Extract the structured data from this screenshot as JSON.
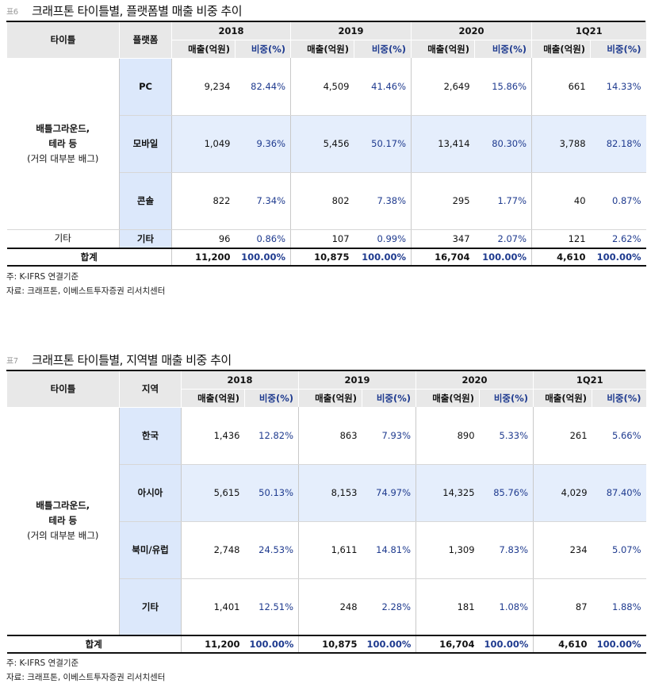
{
  "tables": [
    {
      "tag": "표6",
      "title": "크래프톤 타이틀별, 플랫폼별 매출 비중 추이",
      "col_title": "타이틀",
      "col_second": "플랫폼",
      "years": [
        "2018",
        "2019",
        "2020",
        "1Q21"
      ],
      "sub_sales": "매출(억원)",
      "sub_ratio": "비중(%)",
      "group_name_1": "배틀그라운드,",
      "group_name_2": "테라 등",
      "group_note": "(거의 대부분 배그)",
      "rows": [
        {
          "label": "PC",
          "values": [
            "9,234",
            "82.44%",
            "4,509",
            "41.46%",
            "2,649",
            "15.86%",
            "661",
            "14.33%"
          ]
        },
        {
          "label": "모바일",
          "values": [
            "1,049",
            "9.36%",
            "5,456",
            "50.17%",
            "13,414",
            "80.30%",
            "3,788",
            "82.18%"
          ]
        },
        {
          "label": "콘솔",
          "values": [
            "822",
            "7.34%",
            "802",
            "7.38%",
            "295",
            "1.77%",
            "40",
            "0.87%"
          ]
        }
      ],
      "etc_row": {
        "group": "기타",
        "label": "기타",
        "values": [
          "96",
          "0.86%",
          "107",
          "0.99%",
          "347",
          "2.07%",
          "121",
          "2.62%"
        ]
      },
      "total_row": {
        "label": "합계",
        "values": [
          "11,200",
          "100.00%",
          "10,875",
          "100.00%",
          "16,704",
          "100.00%",
          "4,610",
          "100.00%"
        ]
      },
      "note": "주: K-IFRS 연결기준",
      "source": "자료: 크래프톤, 이베스트투자증권 리서치센터"
    },
    {
      "tag": "표7",
      "title": "크래프톤 타이틀별, 지역별 매출 비중 추이",
      "col_title": "타이틀",
      "col_second": "지역",
      "years": [
        "2018",
        "2019",
        "2020",
        "1Q21"
      ],
      "sub_sales": "매출(억원)",
      "sub_ratio": "비중(%)",
      "group_name_1": "배틀그라운드,",
      "group_name_2": "테라 등",
      "group_note": "(거의 대부분 배그)",
      "rows": [
        {
          "label": "한국",
          "values": [
            "1,436",
            "12.82%",
            "863",
            "7.93%",
            "890",
            "5.33%",
            "261",
            "5.66%"
          ]
        },
        {
          "label": "아시아",
          "values": [
            "5,615",
            "50.13%",
            "8,153",
            "74.97%",
            "14,325",
            "85.76%",
            "4,029",
            "87.40%"
          ]
        },
        {
          "label": "북미/유럽",
          "values": [
            "2,748",
            "24.53%",
            "1,611",
            "14.81%",
            "1,309",
            "7.83%",
            "234",
            "5.07%"
          ]
        },
        {
          "label": "기타",
          "values": [
            "1,401",
            "12.51%",
            "248",
            "2.28%",
            "181",
            "1.08%",
            "87",
            "1.88%"
          ]
        }
      ],
      "total_row": {
        "label": "합계",
        "values": [
          "11,200",
          "100.00%",
          "10,875",
          "100.00%",
          "16,704",
          "100.00%",
          "4,610",
          "100.00%"
        ]
      },
      "note": "주: K-IFRS 연결기준",
      "source": "자료: 크래프톤, 이베스트투자증권 리서치센터"
    }
  ]
}
